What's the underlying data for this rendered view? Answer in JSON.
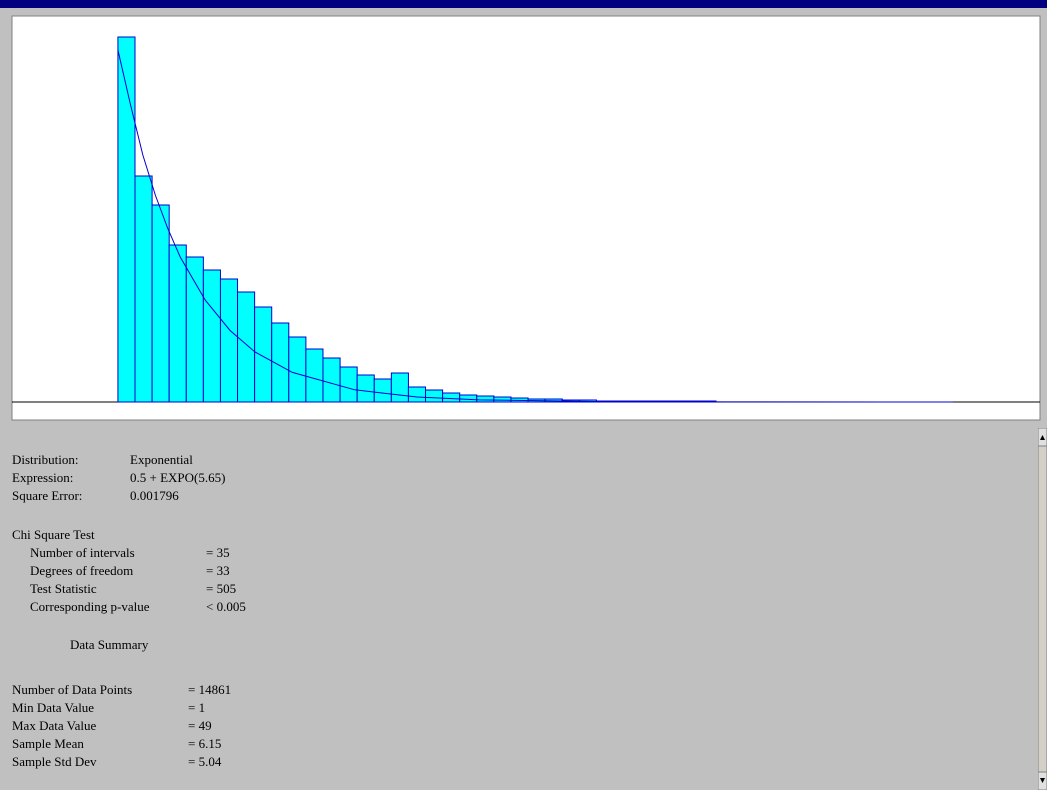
{
  "chart_data": {
    "type": "histogram",
    "bins": [
      1,
      2.371,
      3.743,
      5.114,
      6.486,
      7.857,
      9.229,
      10.6,
      11.971,
      13.343,
      14.714,
      16.086,
      17.457,
      18.829,
      20.2,
      21.571,
      22.943,
      24.314,
      25.686,
      27.057,
      28.429,
      29.8,
      31.171,
      32.543,
      33.914,
      35.286,
      36.657,
      38.029,
      39.4,
      40.771,
      42.143,
      43.514,
      44.886,
      46.257,
      47.629,
      49
    ],
    "values": [
      365,
      226,
      197,
      157,
      145,
      132,
      123,
      110,
      95,
      79,
      65,
      53,
      44,
      35,
      27,
      23,
      29,
      15,
      12,
      9,
      7,
      6,
      5,
      4,
      3,
      3,
      2,
      2,
      1,
      1,
      1,
      1,
      1,
      1,
      1
    ],
    "color": "#00ffff",
    "edge_color": "#0000cc",
    "fit": {
      "x": [
        1,
        2,
        3,
        4,
        5,
        6,
        8,
        10,
        12,
        15,
        20,
        25,
        30,
        40,
        50,
        68
      ],
      "y": [
        352,
        297.8,
        247,
        207,
        173.5,
        145,
        102,
        71.5,
        50,
        29.6,
        12.2,
        5,
        2.1,
        0.4,
        0.1,
        0
      ],
      "color": "#0000cc"
    },
    "xlim": [
      -7.5,
      75
    ],
    "ylim": [
      0,
      384
    ]
  },
  "report": {
    "fit": [
      [
        "Distribution:",
        "Exponential"
      ],
      [
        "Expression:",
        "0.5 + EXPO(5.65)"
      ],
      [
        "Square Error:",
        "0.001796"
      ]
    ],
    "chi_title": "Chi Square Test",
    "chi": [
      [
        "Number of intervals",
        "= 35"
      ],
      [
        "Degrees of freedom",
        "= 33"
      ],
      [
        "Test Statistic",
        "= 505"
      ],
      [
        "Corresponding p-value",
        "< 0.005"
      ]
    ],
    "summary_title": "Data Summary",
    "summary": [
      [
        "Number of Data Points",
        "= 14861"
      ],
      [
        "Min Data Value",
        "= 1"
      ],
      [
        "Max Data Value",
        "= 49"
      ],
      [
        "Sample Mean",
        "= 6.15"
      ],
      [
        "Sample Std Dev",
        "= 5.04"
      ]
    ]
  }
}
